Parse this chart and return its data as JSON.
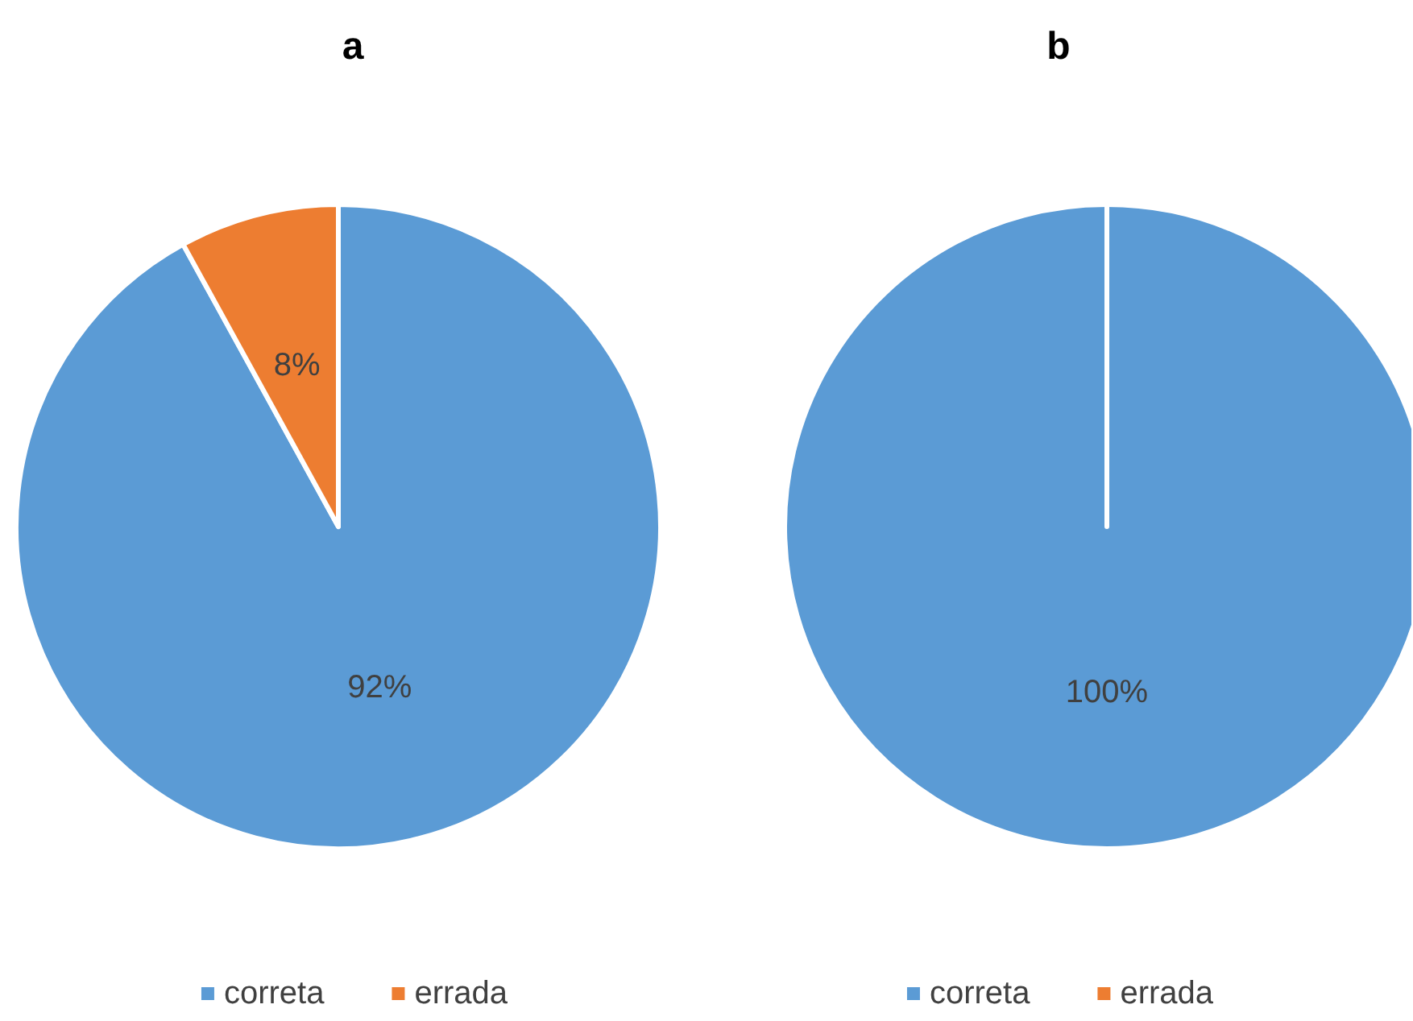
{
  "chart_data": [
    {
      "type": "pie",
      "title": "a",
      "categories": [
        "correta",
        "errada"
      ],
      "values": [
        92,
        8
      ],
      "colors": [
        "#5b9bd5",
        "#ed7d31"
      ],
      "value_labels": [
        "92%",
        "8%"
      ],
      "legend": "bottom"
    },
    {
      "type": "pie",
      "title": "b",
      "categories": [
        "correta",
        "errada"
      ],
      "values": [
        100,
        0
      ],
      "colors": [
        "#5b9bd5",
        "#ed7d31"
      ],
      "value_labels": [
        "100%",
        null
      ],
      "legend": "bottom"
    }
  ]
}
